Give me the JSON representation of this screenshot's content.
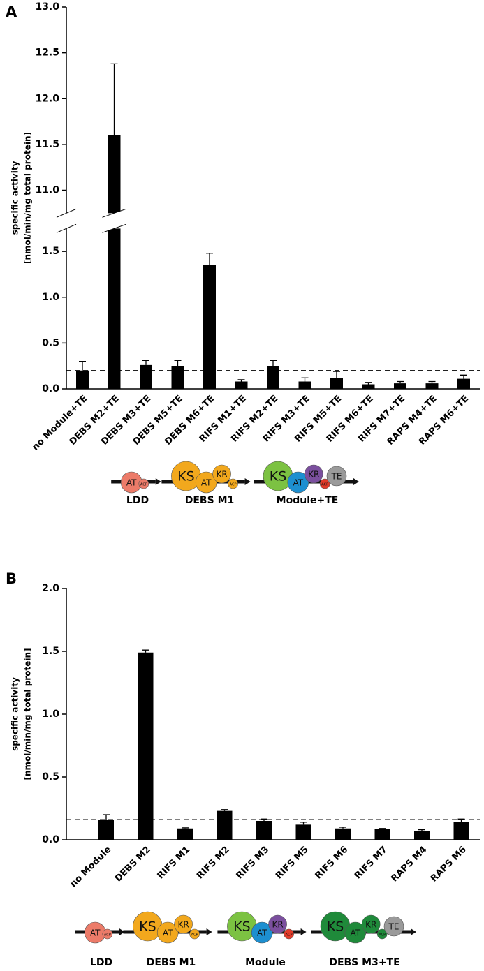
{
  "chart_data": [
    {
      "type": "bar",
      "panel": "A",
      "ylabel": [
        "specific activity",
        "[nmol/min/mg total protein]"
      ],
      "categories": [
        "no Module+TE",
        "DEBS M2+TE",
        "DEBS M3+TE",
        "DEBS M5+TE",
        "DEBS M6+TE",
        "RIFS M1+TE",
        "RIFS M2+TE",
        "RIFS M3+TE",
        "RIFS M5+TE",
        "RIFS M6+TE",
        "RIFS M7+TE",
        "RAPS M4+TE",
        "RAPS M6+TE"
      ],
      "values": [
        0.2,
        11.6,
        0.26,
        0.25,
        1.35,
        0.08,
        0.25,
        0.08,
        0.12,
        0.05,
        0.06,
        0.06,
        0.11
      ],
      "errors": [
        0.1,
        0.78,
        0.05,
        0.06,
        0.13,
        0.02,
        0.06,
        0.04,
        0.07,
        0.02,
        0.02,
        0.02,
        0.04
      ],
      "color": "#000000",
      "ylim": [
        0,
        13
      ],
      "ybreak": [
        1.75,
        10.75
      ],
      "yticks": [
        {
          "value": 0,
          "label": "0.0"
        },
        0.5,
        {
          "value": 1,
          "label": "1.0"
        },
        1.5,
        {
          "value": 11,
          "label": "11.0"
        },
        11.5,
        {
          "value": 12,
          "label": "12.0"
        },
        12.5,
        {
          "value": 13,
          "label": "13.0"
        }
      ],
      "reference_line": 0.2,
      "schematic": [
        {
          "label": "LDD",
          "domains": [
            {
              "name": "AT",
              "color": "#ec7b69"
            },
            {
              "name": "ACP",
              "color": "#ec7b69"
            }
          ]
        },
        {
          "label": "DEBS M1",
          "domains": [
            {
              "name": "KS",
              "color": "#f2a81d"
            },
            {
              "name": "AT",
              "color": "#f2a81d"
            },
            {
              "name": "KR",
              "color": "#f2a81d"
            },
            {
              "name": "ACP",
              "color": "#f2a81d"
            }
          ]
        },
        {
          "label": "Module+TE",
          "domains": [
            {
              "name": "KS",
              "color": "#7cc242"
            },
            {
              "name": "AT",
              "color": "#1d8fd0"
            },
            {
              "name": "KR",
              "color": "#7b4f9e"
            },
            {
              "name": "ACP",
              "color": "#e23b2a"
            },
            {
              "name": "TE",
              "color": "#9a9a9a"
            }
          ]
        }
      ]
    },
    {
      "type": "bar",
      "panel": "B",
      "ylabel": [
        "specific activity",
        "[nmol/min/mg total protein]"
      ],
      "categories": [
        "no Module",
        "DEBS M2",
        "RIFS M1",
        "RIFS M2",
        "RIFS M3",
        "RIFS M5",
        "RIFS M6",
        "RIFS M7",
        "RAPS M4",
        "RAPS M6"
      ],
      "values": [
        0.16,
        1.49,
        0.09,
        0.23,
        0.15,
        0.12,
        0.09,
        0.085,
        0.07,
        0.14
      ],
      "errors": [
        0.04,
        0.02,
        0.005,
        0.01,
        0.015,
        0.02,
        0.01,
        0.005,
        0.01,
        0.025
      ],
      "color": "#000000",
      "ylim": [
        0,
        2
      ],
      "yticks": [
        {
          "value": 0,
          "label": "0.0"
        },
        0.5,
        {
          "value": 1,
          "label": "1.0"
        },
        1.5,
        {
          "value": 2,
          "label": "2.0"
        }
      ],
      "reference_line": 0.16,
      "schematic": [
        {
          "label": "LDD",
          "domains": [
            {
              "name": "AT",
              "color": "#ec7b69"
            },
            {
              "name": "ACP",
              "color": "#ec7b69"
            }
          ]
        },
        {
          "label": "DEBS M1",
          "domains": [
            {
              "name": "KS",
              "color": "#f2a81d"
            },
            {
              "name": "AT",
              "color": "#f2a81d"
            },
            {
              "name": "KR",
              "color": "#f2a81d"
            },
            {
              "name": "ACP",
              "color": "#f2a81d"
            }
          ]
        },
        {
          "label": "Module",
          "domains": [
            {
              "name": "KS",
              "color": "#7cc242"
            },
            {
              "name": "AT",
              "color": "#1d8fd0"
            },
            {
              "name": "KR",
              "color": "#7b4f9e"
            },
            {
              "name": "ACP",
              "color": "#e23b2a"
            }
          ]
        },
        {
          "label": "DEBS M3+TE",
          "domains": [
            {
              "name": "KS",
              "color": "#1f8a3a"
            },
            {
              "name": "AT",
              "color": "#1f8a3a"
            },
            {
              "name": "KR",
              "color": "#1f8a3a"
            },
            {
              "name": "ACP",
              "color": "#1f8a3a"
            },
            {
              "name": "TE",
              "color": "#9a9a9a"
            }
          ]
        }
      ]
    }
  ]
}
